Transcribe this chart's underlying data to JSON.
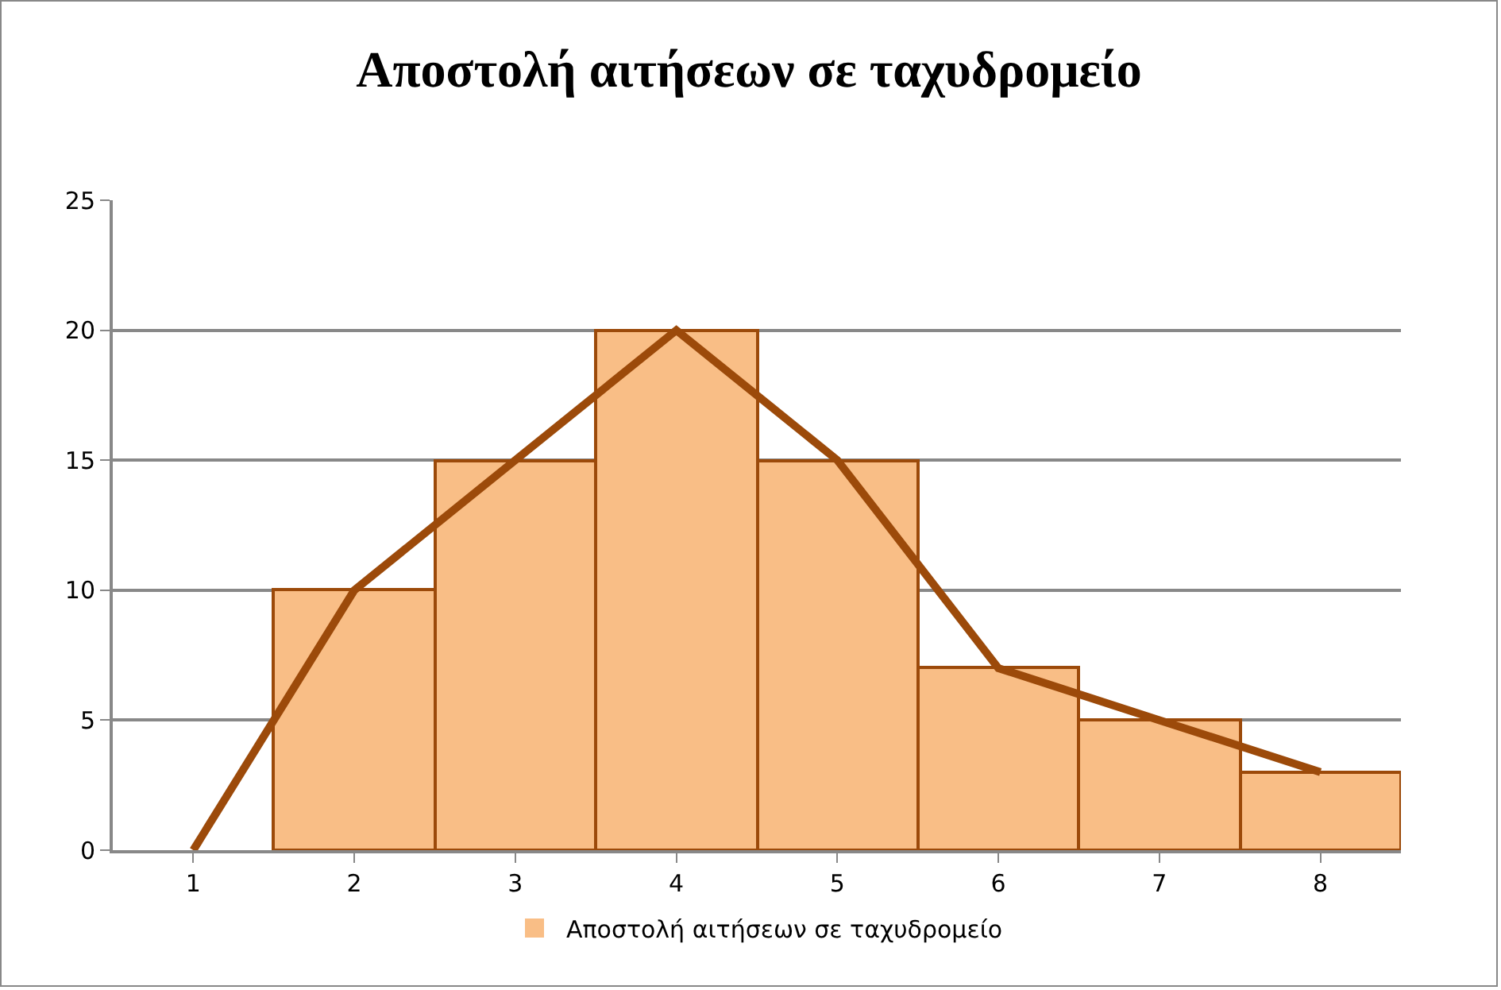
{
  "chart_data": {
    "type": "bar",
    "title": "Αποστολή αιτήσεων σε ταχυδρομείο",
    "categories": [
      "1",
      "2",
      "3",
      "4",
      "5",
      "6",
      "7",
      "8"
    ],
    "series": [
      {
        "name": "Αποστολή αιτήσεων σε ταχυδρομείο",
        "color": "#f9be86",
        "values": [
          0,
          10,
          15,
          20,
          15,
          7,
          5,
          3
        ]
      },
      {
        "type": "line",
        "color": "#9c4a0a",
        "values": [
          0,
          10,
          15,
          20,
          15,
          7,
          5,
          3
        ]
      }
    ],
    "ylim": [
      0,
      25
    ],
    "yticks": [
      0,
      5,
      10,
      15,
      20,
      25
    ],
    "grid": "y",
    "legend": "bottom"
  }
}
